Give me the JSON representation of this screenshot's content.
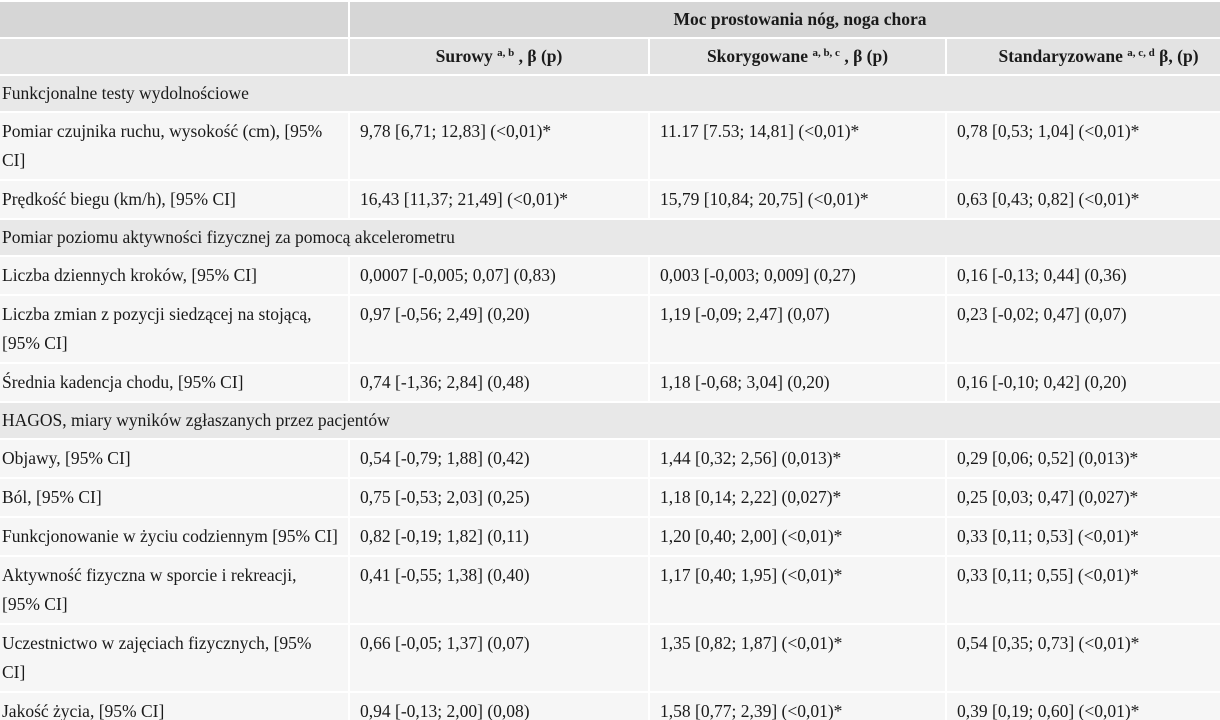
{
  "header": {
    "title": "Moc prostowania nóg, noga chora",
    "columns": [
      {
        "label": "Surowy ",
        "sup": "a, b",
        "rest": " , β (p)"
      },
      {
        "label": "Skorygowane ",
        "sup": "a, b, c",
        "rest": " , β (p)"
      },
      {
        "label": "Standaryzowane ",
        "sup": "a, c, d",
        "rest": " β, (p)"
      }
    ]
  },
  "sections": [
    {
      "title": "Funkcjonalne testy wydolnościowe",
      "rows": [
        [
          "Pomiar czujnika ruchu, wysokość (cm), [95% CI]",
          "9,78 [6,71; 12,83] (<0,01)*",
          "11.17 [7.53; 14,81] (<0,01)*",
          "0,78 [0,53; 1,04] (<0,01)*"
        ],
        [
          "Prędkość biegu (km/h), [95% CI]",
          "16,43 [11,37; 21,49] (<0,01)*",
          "15,79 [10,84; 20,75] (<0,01)*",
          "0,63 [0,43; 0,82] (<0,01)*"
        ]
      ]
    },
    {
      "title": "Pomiar poziomu aktywności fizycznej za pomocą akcelerometru",
      "rows": [
        [
          "Liczba dziennych kroków, [95% CI]",
          "0,0007 [-0,005; 0,07] (0,83)",
          "0,003 [-0,003; 0,009] (0,27)",
          "0,16 [-0,13; 0,44] (0,36)"
        ],
        [
          "Liczba zmian z pozycji siedzącej na stojącą, [95% CI]",
          "0,97 [-0,56; 2,49] (0,20)",
          "1,19 [-0,09; 2,47] (0,07)",
          "0,23 [-0,02; 0,47] (0,07)"
        ],
        [
          "Średnia kadencja chodu, [95% CI]",
          "0,74 [-1,36; 2,84] (0,48)",
          "1,18 [-0,68; 3,04] (0,20)",
          "0,16 [-0,10; 0,42] (0,20)"
        ]
      ]
    },
    {
      "title": "HAGOS, miary wyników zgłaszanych przez pacjentów",
      "rows": [
        [
          "Objawy, [95% CI]",
          "0,54 [-0,79; 1,88] (0,42)",
          "1,44 [0,32; 2,56] (0,013)*",
          "0,29 [0,06; 0,52] (0,013)*"
        ],
        [
          "Ból, [95% CI]",
          "0,75 [-0,53; 2,03] (0,25)",
          "1,18 [0,14; 2,22] (0,027)*",
          "0,25 [0,03; 0,47] (0,027)*"
        ],
        [
          "Funkcjonowanie w życiu codziennym [95% CI]",
          "0,82 [-0,19; 1,82] (0,11)",
          "1,20 [0,40; 2,00] (<0,01)*",
          "0,33 [0,11; 0,53] (<0,01)*"
        ],
        [
          "Aktywność fizyczna w sporcie i rekreacji, [95% CI]",
          "0,41 [-0,55; 1,38] (0,40)",
          "1,17 [0,40; 1,95] (<0,01)*",
          "0,33 [0,11; 0,55] (<0,01)*"
        ],
        [
          "Uczestnictwo w zajęciach fizycznych, [95% CI]",
          "0,66 [-0,05; 1,37] (0,07)",
          "1,35 [0,82; 1,87] (<0,01)*",
          "0,54 [0,35; 0,73] (<0,01)*"
        ],
        [
          "Jakość życia, [95% CI]",
          "0,94 [-0,13; 2,00] (0,08)",
          "1,58 [0,77; 2,39] (<0,01)*",
          "0,39 [0,19; 0,60] (<0,01)*"
        ]
      ]
    }
  ]
}
